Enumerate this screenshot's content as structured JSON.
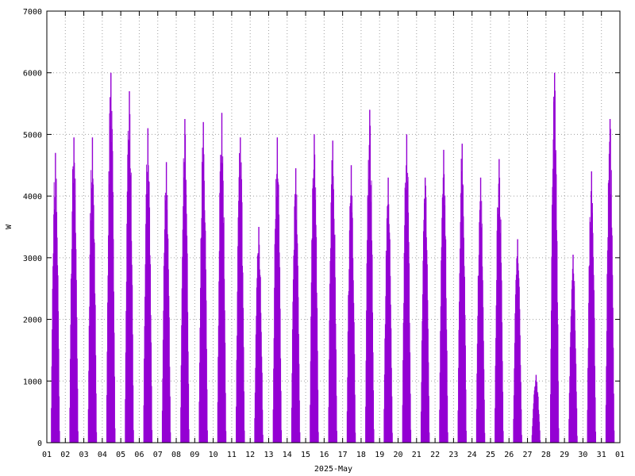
{
  "chart_data": {
    "type": "bar",
    "title": "",
    "xlabel": "2025-May",
    "ylabel": "W",
    "ylim": [
      0,
      7000
    ],
    "yticks": [
      0,
      1000,
      2000,
      3000,
      4000,
      5000,
      6000,
      7000
    ],
    "xticks": [
      "01",
      "02",
      "03",
      "04",
      "05",
      "06",
      "07",
      "08",
      "09",
      "10",
      "11",
      "12",
      "13",
      "14",
      "15",
      "16",
      "17",
      "18",
      "19",
      "20",
      "21",
      "22",
      "23",
      "24",
      "25",
      "26",
      "27",
      "28",
      "29",
      "30",
      "31",
      "01"
    ],
    "grid": true,
    "bar_color": "#9400d3",
    "series": [
      {
        "values": [
          {
            "day": "2025-05-01",
            "peak": 4700
          },
          {
            "day": "2025-05-02",
            "peak": 4950
          },
          {
            "day": "2025-05-03",
            "peak": 4950
          },
          {
            "day": "2025-05-04",
            "peak": 6000
          },
          {
            "day": "2025-05-05",
            "peak": 5700
          },
          {
            "day": "2025-05-06",
            "peak": 5100
          },
          {
            "day": "2025-05-07",
            "peak": 4550
          },
          {
            "day": "2025-05-08",
            "peak": 5250
          },
          {
            "day": "2025-05-09",
            "peak": 5200
          },
          {
            "day": "2025-05-10",
            "peak": 5350
          },
          {
            "day": "2025-05-11",
            "peak": 4950
          },
          {
            "day": "2025-05-12",
            "peak": 3500
          },
          {
            "day": "2025-05-13",
            "peak": 4950
          },
          {
            "day": "2025-05-14",
            "peak": 4450
          },
          {
            "day": "2025-05-15",
            "peak": 5000
          },
          {
            "day": "2025-05-16",
            "peak": 4900
          },
          {
            "day": "2025-05-17",
            "peak": 4500
          },
          {
            "day": "2025-05-18",
            "peak": 5400
          },
          {
            "day": "2025-05-19",
            "peak": 4300
          },
          {
            "day": "2025-05-20",
            "peak": 5000
          },
          {
            "day": "2025-05-21",
            "peak": 4300
          },
          {
            "day": "2025-05-22",
            "peak": 4750
          },
          {
            "day": "2025-05-23",
            "peak": 4850
          },
          {
            "day": "2025-05-24",
            "peak": 4300
          },
          {
            "day": "2025-05-25",
            "peak": 4600
          },
          {
            "day": "2025-05-26",
            "peak": 3300
          },
          {
            "day": "2025-05-27",
            "peak": 1100
          },
          {
            "day": "2025-05-28",
            "peak": 6000
          },
          {
            "day": "2025-05-29",
            "peak": 3050
          },
          {
            "day": "2025-05-30",
            "peak": 4400
          },
          {
            "day": "2025-05-31",
            "peak": 5250
          }
        ]
      }
    ]
  }
}
